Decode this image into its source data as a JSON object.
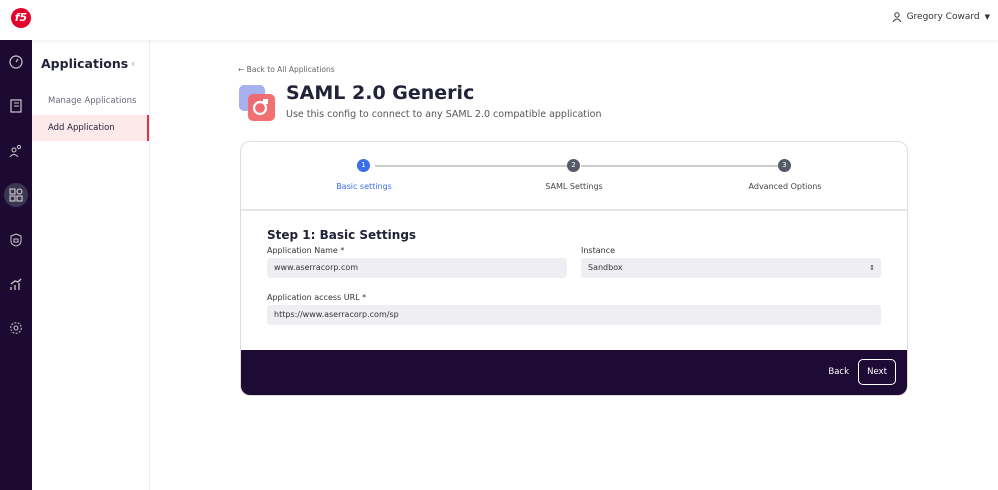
{
  "topbar": {
    "user_name": "Gregory Coward",
    "logo_text": "f5"
  },
  "rail": {
    "icons": [
      "dashboard-icon",
      "notebook-icon",
      "users-icon",
      "applications-icon",
      "shield-lock-icon",
      "analytics-icon",
      "settings-icon"
    ],
    "active": "applications-icon"
  },
  "subnav": {
    "title": "Applications",
    "items": [
      {
        "label": "Manage Applications"
      },
      {
        "label": "Add Application",
        "active": true
      }
    ]
  },
  "page": {
    "back_link": "← Back to All Applications",
    "title": "SAML 2.0 Generic",
    "subtitle": "Use this config to connect to any SAML 2.0 compatible application"
  },
  "stepper": {
    "steps": [
      {
        "num": "1",
        "label": "Basic settings",
        "active": true
      },
      {
        "num": "2",
        "label": "SAML Settings"
      },
      {
        "num": "3",
        "label": "Advanced Options"
      }
    ]
  },
  "form": {
    "heading": "Step 1: Basic Settings",
    "app_name_label": "Application Name *",
    "app_name_value": "www.aserracorp.com",
    "instance_label": "Instance",
    "instance_value": "Sandbox",
    "url_label": "Application access URL *",
    "url_value": "https://www.aserracorp.com/sp"
  },
  "footer": {
    "back_label": "Back",
    "next_label": "Next"
  },
  "colors": {
    "rail": "#1c0a33",
    "accent": "#3b6ee8",
    "brand_red": "#e4002b",
    "footer": "#1e0b35"
  }
}
